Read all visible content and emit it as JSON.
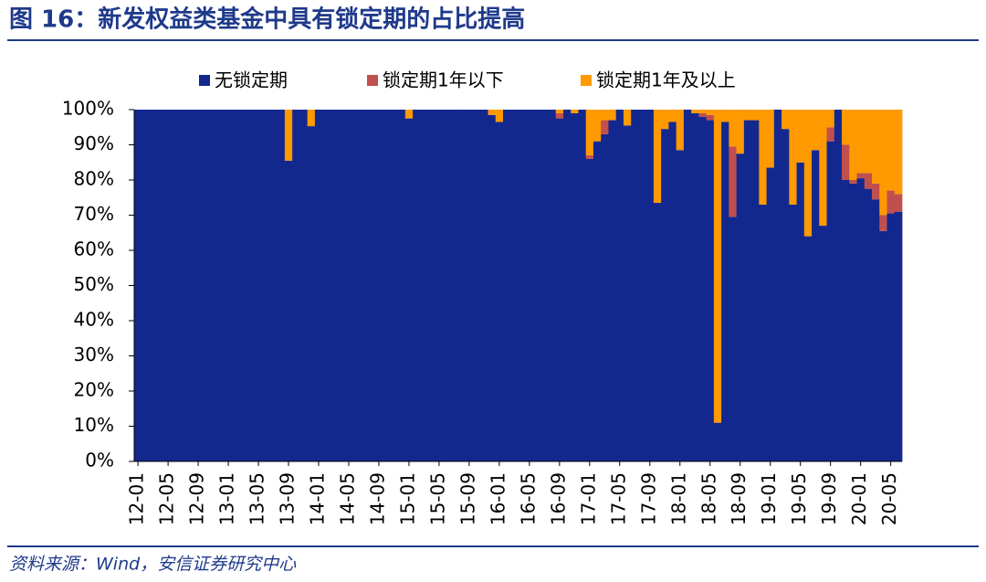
{
  "chart_data": {
    "type": "stacked_bar",
    "title": "图 16：新发权益类基金中具有锁定期的占比提高",
    "source": "资料来源：Wind，安信证券研究中心",
    "categories": [
      "12-01",
      null,
      null,
      null,
      "12-05",
      null,
      null,
      null,
      "12-09",
      null,
      null,
      null,
      "13-01",
      null,
      null,
      null,
      "13-05",
      null,
      null,
      null,
      "13-09",
      null,
      null,
      null,
      "14-01",
      null,
      null,
      null,
      "14-05",
      null,
      null,
      null,
      "14-09",
      null,
      null,
      null,
      "15-01",
      null,
      null,
      null,
      "15-05",
      null,
      null,
      null,
      "15-09",
      null,
      null,
      null,
      "16-01",
      null,
      null,
      null,
      "16-05",
      null,
      null,
      null,
      "16-09",
      null,
      null,
      null,
      "17-01",
      null,
      null,
      null,
      "17-05",
      null,
      null,
      null,
      "17-09",
      null,
      null,
      null,
      "18-01",
      null,
      null,
      null,
      "18-05",
      null,
      null,
      null,
      "18-09",
      null,
      null,
      null,
      "19-01",
      null,
      null,
      null,
      "19-05",
      null,
      null,
      null,
      "19-09",
      null,
      null,
      null,
      "20-01",
      null,
      null,
      null,
      "20-05",
      null
    ],
    "series": [
      {
        "name": "无锁定期",
        "color": "#13288f",
        "values": [
          100,
          100,
          100,
          100,
          100,
          100,
          100,
          100,
          100,
          100,
          100,
          100,
          100,
          100,
          100,
          100,
          100,
          100,
          100,
          100,
          85.5,
          100,
          100,
          95.3,
          100,
          100,
          100,
          100,
          100,
          100,
          100,
          100,
          100,
          100,
          100,
          100,
          97.5,
          100,
          100,
          100,
          100,
          100,
          100,
          100,
          100,
          100,
          100,
          98.5,
          96.5,
          100,
          100,
          100,
          100,
          100,
          100,
          100,
          97.5,
          100,
          99,
          100,
          86,
          91,
          93,
          97,
          100,
          95.5,
          100,
          100,
          100,
          73.5,
          94.5,
          96.5,
          88.5,
          100,
          99,
          98,
          97,
          11,
          96.5,
          69.5,
          87.5,
          97,
          97,
          73,
          83.5,
          100,
          94.5,
          73,
          85,
          64,
          88.5,
          67,
          91,
          100,
          80,
          79,
          80.5,
          77.5,
          74.5,
          65.5,
          70.5,
          71
        ]
      },
      {
        "name": "锁定期1年以下",
        "color": "#c0504d",
        "values": [
          0,
          0,
          0,
          0,
          0,
          0,
          0,
          0,
          0,
          0,
          0,
          0,
          0,
          0,
          0,
          0,
          0,
          0,
          0,
          0,
          0,
          0,
          0,
          0,
          0,
          0,
          0,
          0,
          0,
          0,
          0,
          0,
          0,
          0,
          0,
          0,
          0,
          0,
          0,
          0,
          0,
          0,
          0,
          0,
          0,
          0,
          0,
          0,
          0,
          0,
          0,
          0,
          0,
          0,
          0,
          0,
          1.5,
          0,
          0,
          0,
          1,
          0,
          4,
          0,
          0,
          0,
          0,
          0,
          0,
          0,
          0,
          0,
          0,
          0,
          0,
          1,
          1.5,
          0,
          0,
          20,
          0,
          0,
          0,
          0,
          0,
          0,
          0,
          0,
          0,
          0,
          0,
          0,
          4,
          0,
          10,
          1,
          1.5,
          4.5,
          4.5,
          4.5,
          6.5,
          5
        ]
      },
      {
        "name": "锁定期1年及以上",
        "color": "#ff9900",
        "values": [
          0,
          0,
          0,
          0,
          0,
          0,
          0,
          0,
          0,
          0,
          0,
          0,
          0,
          0,
          0,
          0,
          0,
          0,
          0,
          0,
          14.5,
          0,
          0,
          4.7,
          0,
          0,
          0,
          0,
          0,
          0,
          0,
          0,
          0,
          0,
          0,
          0,
          2.5,
          0,
          0,
          0,
          0,
          0,
          0,
          0,
          0,
          0,
          0,
          1.5,
          3.5,
          0,
          0,
          0,
          0,
          0,
          0,
          0,
          1,
          0,
          1,
          0,
          13,
          9,
          3,
          3,
          0,
          4.5,
          0,
          0,
          0,
          26.5,
          5.5,
          3.5,
          11.5,
          0,
          1,
          1,
          1.5,
          89,
          3.5,
          10.5,
          12.5,
          3,
          3,
          27,
          16.5,
          0,
          5.5,
          27,
          15,
          36,
          11.5,
          33,
          5,
          0,
          10,
          20,
          18,
          18,
          21,
          30,
          23,
          24
        ]
      }
    ],
    "ylim": [
      0,
      100
    ],
    "yticks": [
      {
        "value": 0,
        "label": "0%"
      },
      {
        "value": 10,
        "label": "10%"
      },
      {
        "value": 20,
        "label": "20%"
      },
      {
        "value": 30,
        "label": "30%"
      },
      {
        "value": 40,
        "label": "40%"
      },
      {
        "value": 50,
        "label": "50%"
      },
      {
        "value": 60,
        "label": "60%"
      },
      {
        "value": 70,
        "label": "70%"
      },
      {
        "value": 80,
        "label": "80%"
      },
      {
        "value": 90,
        "label": "90%"
      },
      {
        "value": 100,
        "label": "100%"
      }
    ],
    "legend": "top"
  }
}
